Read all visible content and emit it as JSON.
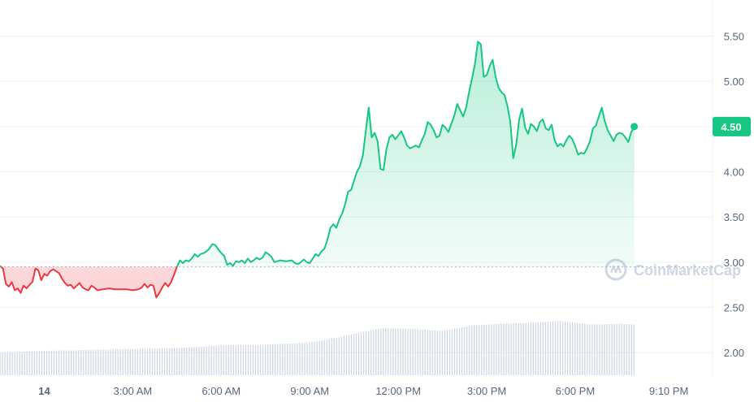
{
  "chart_data": {
    "type": "line",
    "title": "",
    "xlabel": "",
    "ylabel": "",
    "ylim": [
      1.75,
      5.9
    ],
    "y_ticks": [
      2.0,
      2.5,
      3.0,
      3.5,
      4.0,
      4.5,
      5.0,
      5.5
    ],
    "y_tick_labels": [
      "2.00",
      "2.50",
      "3.00",
      "3.50",
      "4.00",
      "4.50",
      "5.00",
      "5.50"
    ],
    "x_range_hours": [
      -1.5,
      22.6
    ],
    "x_ticks": [
      {
        "label": "14",
        "hour": 0,
        "bold": true
      },
      {
        "label": "3:00 AM",
        "hour": 3
      },
      {
        "label": "6:00 AM",
        "hour": 6
      },
      {
        "label": "9:00 AM",
        "hour": 9
      },
      {
        "label": "12:00 PM",
        "hour": 12
      },
      {
        "label": "3:00 PM",
        "hour": 15
      },
      {
        "label": "6:00 PM",
        "hour": 18
      },
      {
        "label": "9:10 PM",
        "hour": 21.17
      }
    ],
    "baseline": 2.95,
    "current_price": 4.5,
    "current_price_label": "4.50",
    "colors": {
      "up": "#16c784",
      "down": "#ea3943",
      "volume": "#cfd6e4",
      "grid": "#eff2f5",
      "baseline": "#a6b0c3"
    },
    "price_series": {
      "name": "",
      "points": [
        [
          -1.5,
          2.96
        ],
        [
          -1.4,
          2.93
        ],
        [
          -1.3,
          2.76
        ],
        [
          -1.2,
          2.73
        ],
        [
          -1.1,
          2.78
        ],
        [
          -1.0,
          2.69
        ],
        [
          -0.9,
          2.71
        ],
        [
          -0.8,
          2.66
        ],
        [
          -0.7,
          2.74
        ],
        [
          -0.6,
          2.71
        ],
        [
          -0.5,
          2.75
        ],
        [
          -0.4,
          2.78
        ],
        [
          -0.3,
          2.93
        ],
        [
          -0.2,
          2.91
        ],
        [
          -0.1,
          2.8
        ],
        [
          0.0,
          2.87
        ],
        [
          0.1,
          2.85
        ],
        [
          0.2,
          2.9
        ],
        [
          0.3,
          2.92
        ],
        [
          0.5,
          2.88
        ],
        [
          0.6,
          2.82
        ],
        [
          0.7,
          2.77
        ],
        [
          0.8,
          2.74
        ],
        [
          0.9,
          2.75
        ],
        [
          1.0,
          2.71
        ],
        [
          1.1,
          2.74
        ],
        [
          1.2,
          2.77
        ],
        [
          1.3,
          2.72
        ],
        [
          1.4,
          2.7
        ],
        [
          1.5,
          2.69
        ],
        [
          1.6,
          2.74
        ],
        [
          1.7,
          2.72
        ],
        [
          1.8,
          2.69
        ],
        [
          2.0,
          2.7
        ],
        [
          2.2,
          2.71
        ],
        [
          2.4,
          2.7
        ],
        [
          2.6,
          2.7
        ],
        [
          2.8,
          2.7
        ],
        [
          3.0,
          2.69
        ],
        [
          3.2,
          2.7
        ],
        [
          3.3,
          2.72
        ],
        [
          3.4,
          2.76
        ],
        [
          3.5,
          2.72
        ],
        [
          3.6,
          2.75
        ],
        [
          3.7,
          2.74
        ],
        [
          3.8,
          2.61
        ],
        [
          3.9,
          2.66
        ],
        [
          4.0,
          2.72
        ],
        [
          4.1,
          2.77
        ],
        [
          4.2,
          2.73
        ],
        [
          4.3,
          2.78
        ],
        [
          4.4,
          2.86
        ],
        [
          4.5,
          2.95
        ],
        [
          4.6,
          3.02
        ],
        [
          4.7,
          2.99
        ],
        [
          4.8,
          3.02
        ],
        [
          4.9,
          3.01
        ],
        [
          5.0,
          3.04
        ],
        [
          5.1,
          3.09
        ],
        [
          5.2,
          3.06
        ],
        [
          5.3,
          3.09
        ],
        [
          5.4,
          3.1
        ],
        [
          5.5,
          3.12
        ],
        [
          5.6,
          3.15
        ],
        [
          5.7,
          3.2
        ],
        [
          5.8,
          3.19
        ],
        [
          5.9,
          3.14
        ],
        [
          6.0,
          3.1
        ],
        [
          6.1,
          3.07
        ],
        [
          6.2,
          2.97
        ],
        [
          6.3,
          2.99
        ],
        [
          6.4,
          2.96
        ],
        [
          6.5,
          3.01
        ],
        [
          6.6,
          3.0
        ],
        [
          6.7,
          3.02
        ],
        [
          6.8,
          2.99
        ],
        [
          6.9,
          3.04
        ],
        [
          7.0,
          3.0
        ],
        [
          7.1,
          3.02
        ],
        [
          7.2,
          3.05
        ],
        [
          7.3,
          3.03
        ],
        [
          7.4,
          3.05
        ],
        [
          7.5,
          3.11
        ],
        [
          7.6,
          3.09
        ],
        [
          7.7,
          3.06
        ],
        [
          7.8,
          3.0
        ],
        [
          7.9,
          3.01
        ],
        [
          8.0,
          3.02
        ],
        [
          8.2,
          3.01
        ],
        [
          8.4,
          3.02
        ],
        [
          8.5,
          2.99
        ],
        [
          8.6,
          2.98
        ],
        [
          8.7,
          3.0
        ],
        [
          8.8,
          3.03
        ],
        [
          8.9,
          3.0
        ],
        [
          9.0,
          2.99
        ],
        [
          9.1,
          3.04
        ],
        [
          9.2,
          3.09
        ],
        [
          9.3,
          3.07
        ],
        [
          9.4,
          3.12
        ],
        [
          9.5,
          3.15
        ],
        [
          9.6,
          3.25
        ],
        [
          9.7,
          3.38
        ],
        [
          9.8,
          3.42
        ],
        [
          9.9,
          3.38
        ],
        [
          10.0,
          3.47
        ],
        [
          10.1,
          3.54
        ],
        [
          10.2,
          3.64
        ],
        [
          10.3,
          3.78
        ],
        [
          10.4,
          3.8
        ],
        [
          10.5,
          3.9
        ],
        [
          10.6,
          4.0
        ],
        [
          10.7,
          4.06
        ],
        [
          10.8,
          4.18
        ],
        [
          10.9,
          4.45
        ],
        [
          11.0,
          4.71
        ],
        [
          11.1,
          4.38
        ],
        [
          11.2,
          4.43
        ],
        [
          11.3,
          4.34
        ],
        [
          11.4,
          4.03
        ],
        [
          11.5,
          4.02
        ],
        [
          11.6,
          4.25
        ],
        [
          11.7,
          4.38
        ],
        [
          11.8,
          4.41
        ],
        [
          11.9,
          4.36
        ],
        [
          12.0,
          4.4
        ],
        [
          12.1,
          4.45
        ],
        [
          12.2,
          4.38
        ],
        [
          12.3,
          4.29
        ],
        [
          12.4,
          4.26
        ],
        [
          12.6,
          4.29
        ],
        [
          12.7,
          4.27
        ],
        [
          12.8,
          4.35
        ],
        [
          12.9,
          4.42
        ],
        [
          13.0,
          4.55
        ],
        [
          13.1,
          4.52
        ],
        [
          13.2,
          4.46
        ],
        [
          13.3,
          4.38
        ],
        [
          13.4,
          4.4
        ],
        [
          13.5,
          4.52
        ],
        [
          13.6,
          4.49
        ],
        [
          13.7,
          4.44
        ],
        [
          13.8,
          4.53
        ],
        [
          13.9,
          4.62
        ],
        [
          14.0,
          4.75
        ],
        [
          14.1,
          4.68
        ],
        [
          14.2,
          4.61
        ],
        [
          14.3,
          4.71
        ],
        [
          14.4,
          4.88
        ],
        [
          14.5,
          5.03
        ],
        [
          14.6,
          5.19
        ],
        [
          14.7,
          5.44
        ],
        [
          14.8,
          5.41
        ],
        [
          14.9,
          5.05
        ],
        [
          15.0,
          5.07
        ],
        [
          15.1,
          5.17
        ],
        [
          15.2,
          5.24
        ],
        [
          15.3,
          5.05
        ],
        [
          15.4,
          4.93
        ],
        [
          15.5,
          4.88
        ],
        [
          15.6,
          4.85
        ],
        [
          15.7,
          4.73
        ],
        [
          15.8,
          4.55
        ],
        [
          15.9,
          4.15
        ],
        [
          16.0,
          4.3
        ],
        [
          16.1,
          4.58
        ],
        [
          16.2,
          4.7
        ],
        [
          16.3,
          4.49
        ],
        [
          16.4,
          4.42
        ],
        [
          16.5,
          4.53
        ],
        [
          16.6,
          4.5
        ],
        [
          16.7,
          4.45
        ],
        [
          16.8,
          4.55
        ],
        [
          16.9,
          4.58
        ],
        [
          17.0,
          4.48
        ],
        [
          17.1,
          4.46
        ],
        [
          17.2,
          4.52
        ],
        [
          17.3,
          4.35
        ],
        [
          17.4,
          4.28
        ],
        [
          17.5,
          4.31
        ],
        [
          17.6,
          4.28
        ],
        [
          17.7,
          4.35
        ],
        [
          17.8,
          4.4
        ],
        [
          17.9,
          4.36
        ],
        [
          18.0,
          4.28
        ],
        [
          18.1,
          4.19
        ],
        [
          18.2,
          4.21
        ],
        [
          18.3,
          4.2
        ],
        [
          18.4,
          4.26
        ],
        [
          18.5,
          4.34
        ],
        [
          18.6,
          4.48
        ],
        [
          18.7,
          4.51
        ],
        [
          18.8,
          4.61
        ],
        [
          18.9,
          4.71
        ],
        [
          19.0,
          4.56
        ],
        [
          19.1,
          4.46
        ],
        [
          19.2,
          4.4
        ],
        [
          19.3,
          4.34
        ],
        [
          19.4,
          4.41
        ],
        [
          19.5,
          4.43
        ],
        [
          19.6,
          4.42
        ],
        [
          19.7,
          4.38
        ],
        [
          19.8,
          4.33
        ],
        [
          19.9,
          4.44
        ],
        [
          20.0,
          4.5
        ]
      ]
    },
    "volume_series": {
      "name": "",
      "points": [
        [
          -1.5,
          2.0
        ],
        [
          0.0,
          2.02
        ],
        [
          1.5,
          2.03
        ],
        [
          3.0,
          2.04
        ],
        [
          4.5,
          2.05
        ],
        [
          6.0,
          2.08
        ],
        [
          7.5,
          2.09
        ],
        [
          9.0,
          2.11
        ],
        [
          10.0,
          2.17
        ],
        [
          10.8,
          2.23
        ],
        [
          11.5,
          2.27
        ],
        [
          12.5,
          2.26
        ],
        [
          13.5,
          2.24
        ],
        [
          14.5,
          2.3
        ],
        [
          15.5,
          2.32
        ],
        [
          16.5,
          2.33
        ],
        [
          17.5,
          2.35
        ],
        [
          18.5,
          2.31
        ],
        [
          19.5,
          2.32
        ],
        [
          20.0,
          2.31
        ]
      ]
    }
  },
  "watermark": {
    "text": "CoinMarketCap",
    "icon": "coinmarketcap-logo"
  }
}
